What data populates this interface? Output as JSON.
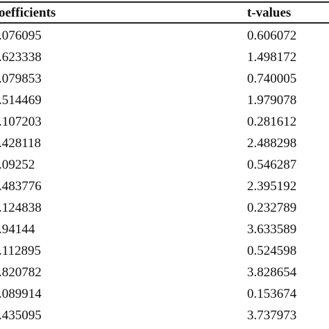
{
  "table": {
    "headers": {
      "coefficients": "oefficients",
      "t_values": "t-values"
    },
    "rows": [
      {
        "coef": ".076095",
        "t": "0.606072"
      },
      {
        "coef": ".623338",
        "t": "1.498172"
      },
      {
        "coef": ".079853",
        "t": "0.740005"
      },
      {
        "coef": ".514469",
        "t": "1.979078"
      },
      {
        "coef": ".107203",
        "t": "0.281612"
      },
      {
        "coef": ".428118",
        "t": "2.488298"
      },
      {
        "coef": ".09252",
        "t": "0.546287"
      },
      {
        "coef": ".483776",
        "t": "2.395192"
      },
      {
        "coef": ".124838",
        "t": "0.232789"
      },
      {
        "coef": ".94144",
        "t": "3.633589"
      },
      {
        "coef": ".112895",
        "t": "0.524598"
      },
      {
        "coef": ".820782",
        "t": "3.828654"
      },
      {
        "coef": ".089914",
        "t": "0.153674"
      },
      {
        "coef": ".435095",
        "t": "3.737973"
      }
    ]
  }
}
